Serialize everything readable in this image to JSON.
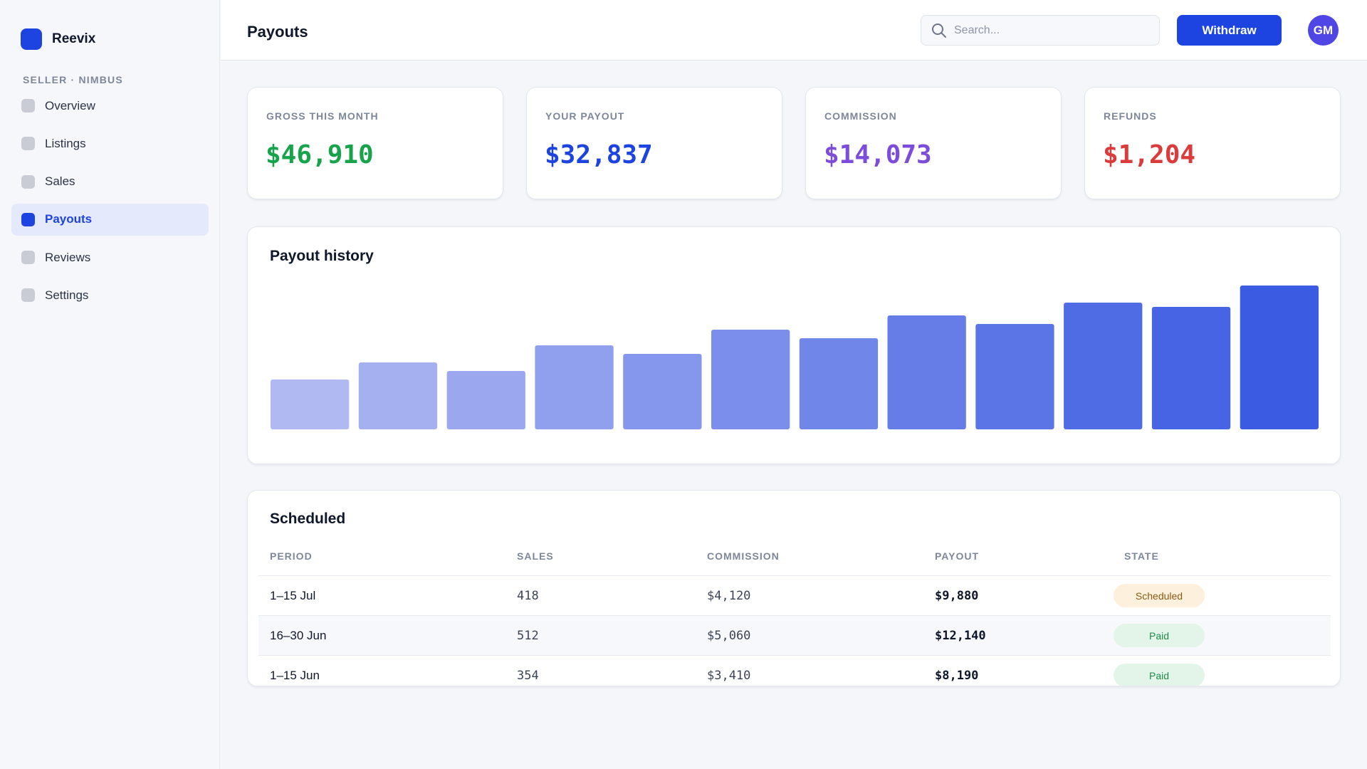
{
  "brand": {
    "name": "Reevix",
    "accent": "#1d44e0"
  },
  "sidebar": {
    "section_label": "SELLER · NIMBUS",
    "items": [
      {
        "label": "Overview",
        "active": false
      },
      {
        "label": "Listings",
        "active": false
      },
      {
        "label": "Sales",
        "active": false
      },
      {
        "label": "Payouts",
        "active": true
      },
      {
        "label": "Reviews",
        "active": false
      },
      {
        "label": "Settings",
        "active": false
      }
    ]
  },
  "header": {
    "title": "Payouts",
    "search_placeholder": "Search...",
    "search_icon": "search-icon",
    "withdraw_label": "Withdraw",
    "avatar_initials": "GM"
  },
  "stats": [
    {
      "label": "GROSS THIS MONTH",
      "value": "$46,910",
      "color": "#16a34a"
    },
    {
      "label": "YOUR PAYOUT",
      "value": "$32,837",
      "color": "#1d44e0"
    },
    {
      "label": "COMMISSION",
      "value": "$14,073",
      "color": "#7c4ddb"
    },
    {
      "label": "REFUNDS",
      "value": "$1,204",
      "color": "#dc3b3b"
    }
  ],
  "chart": {
    "title": "Payout history",
    "color_start": "#b0b9f2",
    "color_end": "#3b5be2"
  },
  "chart_data": {
    "type": "bar",
    "title": "Payout history",
    "categories": [
      "",
      "",
      "",
      "",
      "",
      "",
      "",
      "",
      "",
      "",
      "",
      ""
    ],
    "values": [
      35,
      47,
      41,
      59,
      53,
      70,
      64,
      80,
      74,
      89,
      86,
      101
    ],
    "ylim": [
      0,
      101
    ],
    "grid": false,
    "legend": "none"
  },
  "scheduled": {
    "title": "Scheduled",
    "columns": [
      "PERIOD",
      "SALES",
      "COMMISSION",
      "PAYOUT",
      "STATE"
    ],
    "rows": [
      {
        "period": "1–15 Jul",
        "sales": "418",
        "commission": "$4,120",
        "payout": "$9,880",
        "state": "Scheduled"
      },
      {
        "period": "16–30 Jun",
        "sales": "512",
        "commission": "$5,060",
        "payout": "$12,140",
        "state": "Paid"
      },
      {
        "period": "1–15 Jun",
        "sales": "354",
        "commission": "$3,410",
        "payout": "$8,190",
        "state": "Paid"
      }
    ],
    "state_colors": {
      "Scheduled": {
        "bg": "#fdf0dc",
        "fg": "#8a5a12"
      },
      "Paid": {
        "bg": "#e3f4e9",
        "fg": "#1f8a4c"
      }
    }
  }
}
